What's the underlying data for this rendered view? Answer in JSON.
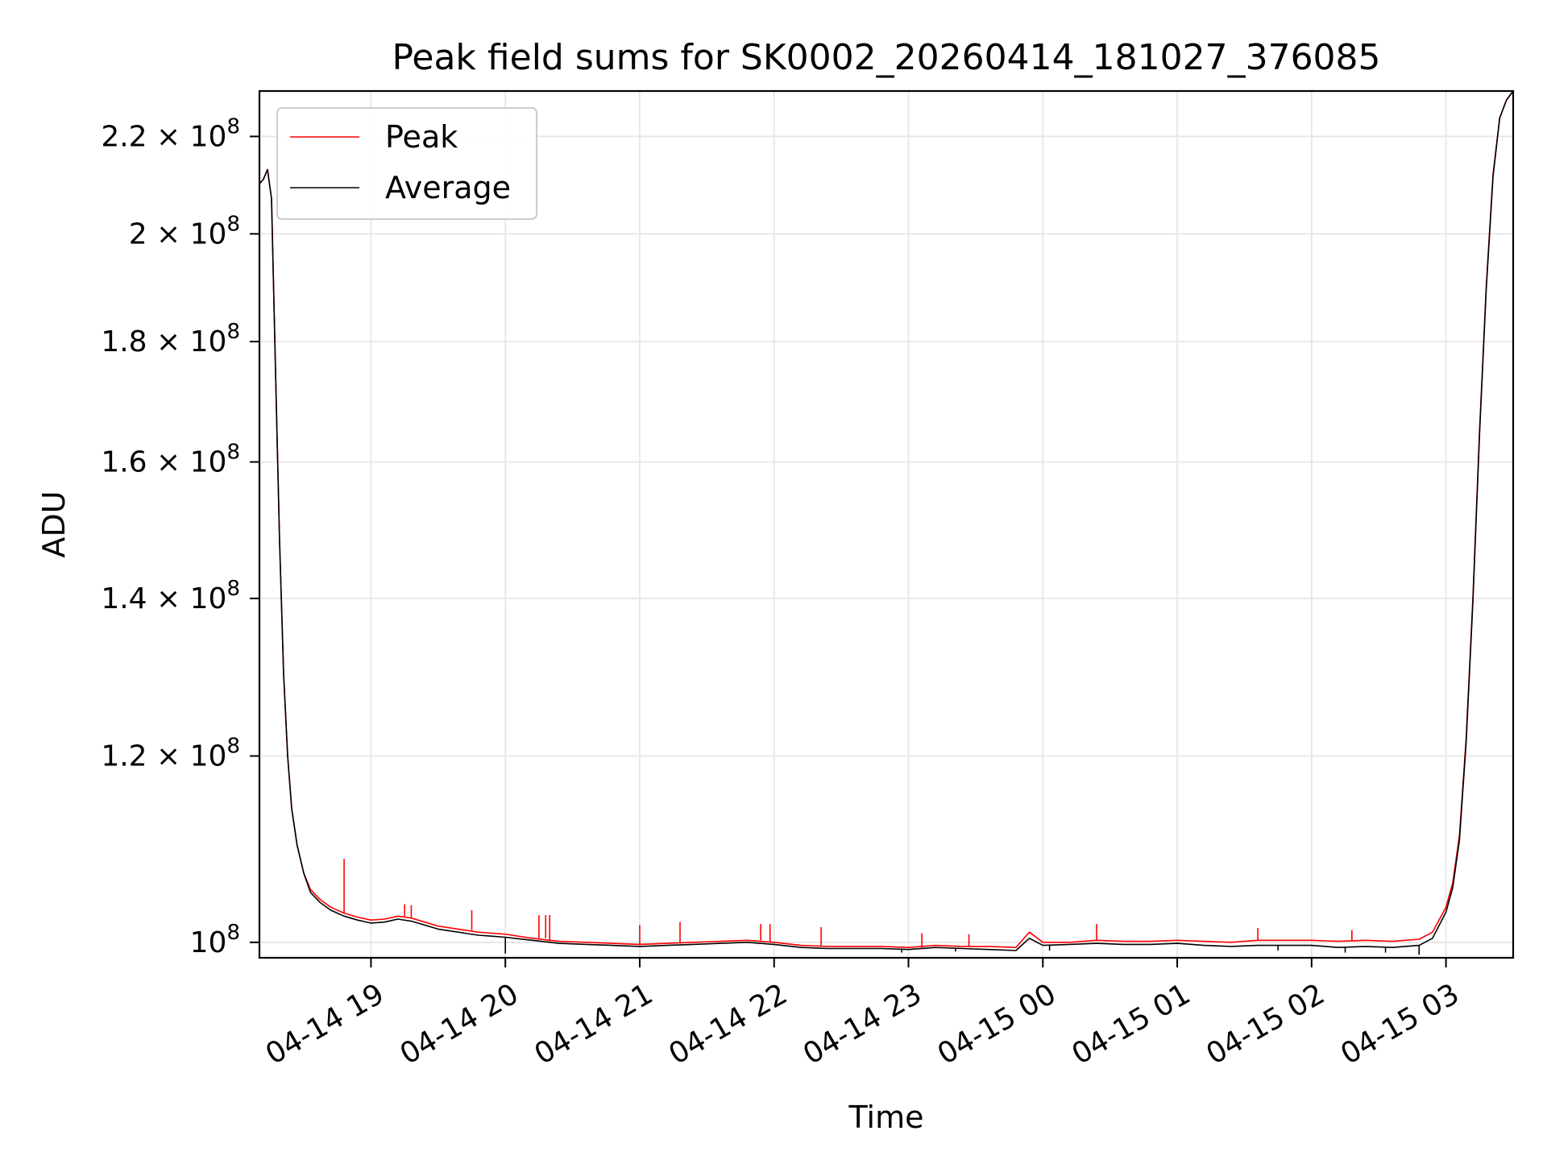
{
  "chart_data": {
    "type": "line",
    "title": "Peak field sums for SK0002_20260414_181027_376085",
    "xlabel": "Time",
    "ylabel": "ADU",
    "yscale": "log",
    "grid": true,
    "legend_position": "top-left",
    "x_unit": "hours since 04-14 18:00",
    "xlim": [
      0.17,
      9.5
    ],
    "ylim": [
      98500000,
      230000000
    ],
    "x_ticks": [
      {
        "value": 1,
        "label": "04-14 19"
      },
      {
        "value": 2,
        "label": "04-14 20"
      },
      {
        "value": 3,
        "label": "04-14 21"
      },
      {
        "value": 4,
        "label": "04-14 22"
      },
      {
        "value": 5,
        "label": "04-14 23"
      },
      {
        "value": 6,
        "label": "04-15 00"
      },
      {
        "value": 7,
        "label": "04-15 01"
      },
      {
        "value": 8,
        "label": "04-15 02"
      },
      {
        "value": 9,
        "label": "04-15 03"
      }
    ],
    "y_ticks": [
      {
        "value": 100000000,
        "mantissa": "",
        "exp": "8"
      },
      {
        "value": 120000000,
        "mantissa": "1.2",
        "exp": "8"
      },
      {
        "value": 140000000,
        "mantissa": "1.4",
        "exp": "8"
      },
      {
        "value": 160000000,
        "mantissa": "1.6",
        "exp": "8"
      },
      {
        "value": 180000000,
        "mantissa": "1.8",
        "exp": "8"
      },
      {
        "value": 200000000,
        "mantissa": "2",
        "exp": "8"
      },
      {
        "value": 220000000,
        "mantissa": "2.2",
        "exp": "8"
      }
    ],
    "series": [
      {
        "name": "Peak",
        "color": "#ff0000",
        "x": [
          0.17,
          0.2,
          0.23,
          0.26,
          0.28,
          0.3,
          0.32,
          0.35,
          0.38,
          0.41,
          0.45,
          0.5,
          0.55,
          0.62,
          0.7,
          0.8,
          0.9,
          1.0,
          1.1,
          1.2,
          1.3,
          1.4,
          1.5,
          1.6,
          1.7,
          1.8,
          1.9,
          2.0,
          2.2,
          2.4,
          2.6,
          2.8,
          3.0,
          3.2,
          3.4,
          3.6,
          3.8,
          4.0,
          4.2,
          4.4,
          4.6,
          4.8,
          5.0,
          5.2,
          5.4,
          5.6,
          5.8,
          5.9,
          6.0,
          6.2,
          6.4,
          6.6,
          6.8,
          7.0,
          7.2,
          7.4,
          7.6,
          7.8,
          8.0,
          8.2,
          8.4,
          8.6,
          8.8,
          8.9,
          9.0,
          9.05,
          9.1,
          9.15,
          9.2,
          9.25,
          9.3,
          9.35,
          9.4,
          9.45,
          9.5
        ],
        "values": [
          210000000,
          211000000,
          213000000,
          207000000,
          185000000,
          165000000,
          148000000,
          130000000,
          120000000,
          114000000,
          110000000,
          107000000,
          105300000,
          104300000,
          103500000,
          102900000,
          102500000,
          102200000,
          102300000,
          102600000,
          102400000,
          102000000,
          101600000,
          101400000,
          101200000,
          101000000,
          100900000,
          100800000,
          100400000,
          100100000,
          100000000,
          99900000,
          99800000,
          99900000,
          100000000,
          100100000,
          100200000,
          100000000,
          99700000,
          99600000,
          99600000,
          99600000,
          99500000,
          99700000,
          99600000,
          99600000,
          99500000,
          101000000,
          100000000,
          100000000,
          100200000,
          100100000,
          100100000,
          100200000,
          100100000,
          100000000,
          100200000,
          100200000,
          100200000,
          100100000,
          100200000,
          100100000,
          100300000,
          101000000,
          103500000,
          106000000,
          111000000,
          122000000,
          140000000,
          165000000,
          190000000,
          212000000,
          224000000,
          228000000,
          230000000
        ],
        "spikes": [
          {
            "x": 0.8,
            "y": 108500000
          },
          {
            "x": 1.25,
            "y": 103800000
          },
          {
            "x": 1.3,
            "y": 103700000
          },
          {
            "x": 1.75,
            "y": 103200000
          },
          {
            "x": 2.25,
            "y": 102700000
          },
          {
            "x": 2.3,
            "y": 102700000
          },
          {
            "x": 2.33,
            "y": 102700000
          },
          {
            "x": 3.0,
            "y": 101700000
          },
          {
            "x": 3.3,
            "y": 102000000
          },
          {
            "x": 3.9,
            "y": 101800000
          },
          {
            "x": 3.97,
            "y": 101800000
          },
          {
            "x": 4.35,
            "y": 101500000
          },
          {
            "x": 5.1,
            "y": 100900000
          },
          {
            "x": 5.45,
            "y": 100800000
          },
          {
            "x": 6.4,
            "y": 101800000
          },
          {
            "x": 7.6,
            "y": 101400000
          },
          {
            "x": 8.3,
            "y": 101200000
          }
        ]
      },
      {
        "name": "Average",
        "color": "#000000",
        "x": [
          0.17,
          0.2,
          0.23,
          0.26,
          0.28,
          0.3,
          0.32,
          0.35,
          0.38,
          0.41,
          0.45,
          0.5,
          0.55,
          0.62,
          0.7,
          0.8,
          0.9,
          1.0,
          1.1,
          1.2,
          1.3,
          1.4,
          1.5,
          1.6,
          1.7,
          1.8,
          1.9,
          2.0,
          2.2,
          2.4,
          2.6,
          2.8,
          3.0,
          3.2,
          3.4,
          3.6,
          3.8,
          4.0,
          4.2,
          4.4,
          4.6,
          4.8,
          5.0,
          5.2,
          5.4,
          5.6,
          5.8,
          5.9,
          6.0,
          6.2,
          6.4,
          6.6,
          6.8,
          7.0,
          7.2,
          7.4,
          7.6,
          7.8,
          8.0,
          8.2,
          8.4,
          8.6,
          8.8,
          8.9,
          9.0,
          9.05,
          9.1,
          9.15,
          9.2,
          9.25,
          9.3,
          9.35,
          9.4,
          9.45,
          9.5
        ],
        "values": [
          210000000,
          211000000,
          213000000,
          207000000,
          185000000,
          165000000,
          148000000,
          130000000,
          120000000,
          114000000,
          110000000,
          107000000,
          105000000,
          104000000,
          103200000,
          102600000,
          102200000,
          101900000,
          102000000,
          102300000,
          102100000,
          101700000,
          101300000,
          101100000,
          100900000,
          100700000,
          100600000,
          100500000,
          100200000,
          99900000,
          99800000,
          99700000,
          99600000,
          99700000,
          99800000,
          99900000,
          100000000,
          99800000,
          99500000,
          99400000,
          99400000,
          99400000,
          99300000,
          99500000,
          99400000,
          99300000,
          99200000,
          100400000,
          99700000,
          99800000,
          99900000,
          99800000,
          99800000,
          99900000,
          99700000,
          99600000,
          99700000,
          99700000,
          99700000,
          99500000,
          99600000,
          99500000,
          99700000,
          100400000,
          103000000,
          105500000,
          110500000,
          121500000,
          139500000,
          164500000,
          189500000,
          211500000,
          224000000,
          228000000,
          230000000
        ],
        "dips": [
          {
            "x": 2.0,
            "y": 98900000
          },
          {
            "x": 4.95,
            "y": 99000000
          },
          {
            "x": 5.35,
            "y": 99100000
          },
          {
            "x": 6.05,
            "y": 99200000
          },
          {
            "x": 7.75,
            "y": 99200000
          },
          {
            "x": 8.25,
            "y": 99000000
          },
          {
            "x": 8.55,
            "y": 99000000
          },
          {
            "x": 8.8,
            "y": 98800000
          }
        ]
      }
    ]
  }
}
